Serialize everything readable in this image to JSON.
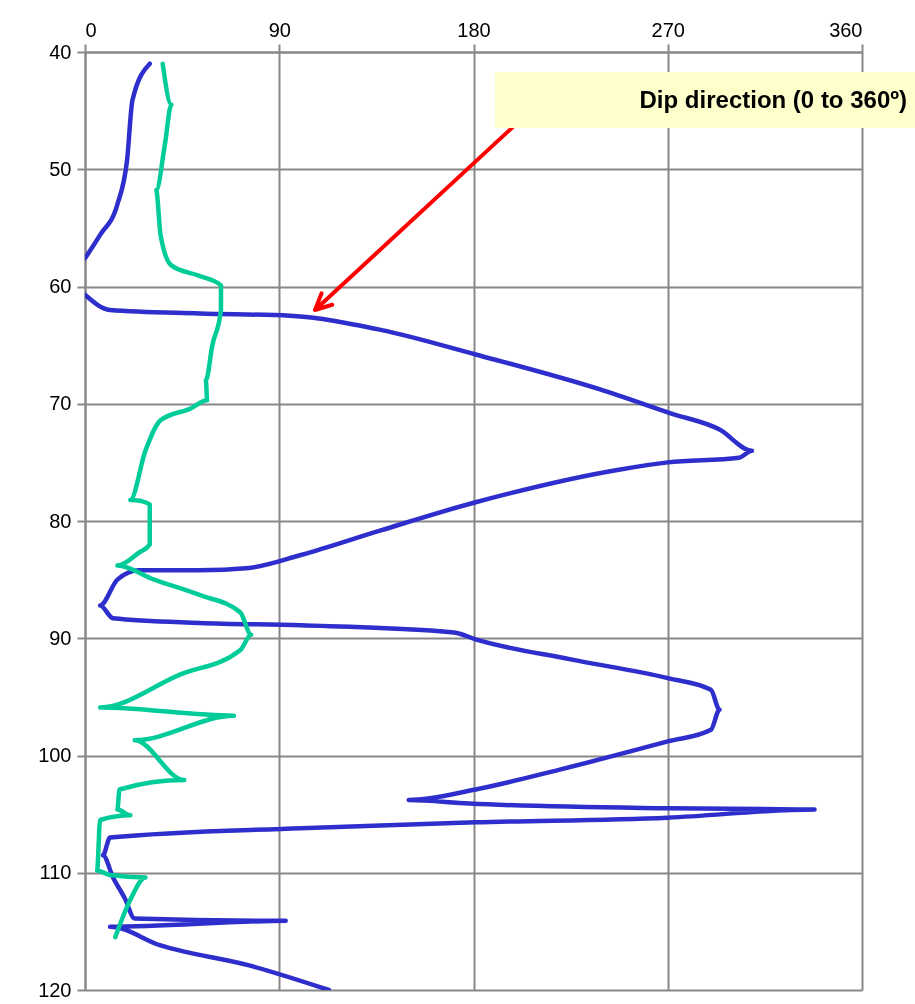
{
  "chart_data": {
    "type": "line",
    "orientation": "horizontal",
    "xlim": [
      0,
      360
    ],
    "xticks": [
      0,
      90,
      180,
      270,
      360
    ],
    "ylim": [
      120,
      40
    ],
    "yticks": [
      40,
      50,
      60,
      70,
      80,
      90,
      100,
      110,
      120
    ],
    "grid": true,
    "line_style": "solid",
    "annotations": [
      "Dip direction (0 to 360º)"
    ],
    "series": [
      {
        "color": "#2e2ecc",
        "x": [
          41,
          44.1,
          49.2,
          53,
          55.6,
          57.6,
          null,
          60.7,
          62.0,
          62.3,
          62.5,
          63.7,
          65.8,
          68.8,
          70.8,
          72.2,
          74,
          74.6,
          75,
          75.6,
          78.4,
          80.8,
          82.9,
          84,
          84.2,
          84.2,
          85,
          87.2,
          88.3,
          88.7,
          88.9,
          89.5,
          90.1,
          91.8,
          93.4,
          94.4,
          96.1,
          97.8,
          98.8,
          101.2,
          102.9,
          103.8,
          104.1,
          104.5,
          104.6,
          105.3,
          105.7,
          106.2,
          107,
          108.5,
          110.4,
          112.2,
          113.9,
          114.1,
          114.6,
          116.2,
          117.9,
          120
        ],
        "values": [
          30,
          22,
          19.5,
          15,
          7,
          0,
          null,
          0,
          11.6,
          53,
          95,
          137,
          181,
          239,
          271,
          294,
          309,
          303,
          270,
          248,
          181,
          137,
          100,
          76,
          53,
          25,
          15,
          7,
          13,
          53,
          100,
          171,
          181,
          225,
          270,
          290,
          294,
          290,
          270,
          220,
          181,
          150,
          178,
          270,
          338,
          270,
          181,
          100,
          11.6,
          8.3,
          13,
          18.5,
          23,
          93,
          11.6,
          35,
          76,
          113
        ]
      },
      {
        "color": "#00cc99",
        "x": [
          41,
          44.5,
          47.9,
          51.8,
          55.6,
          58.2,
          59.1,
          59.9,
          62,
          65,
          68,
          69.7,
          70.4,
          71.4,
          74,
          78.2,
          78.3,
          78.6,
          82,
          82.7,
          83.8,
          85,
          86.3,
          87.8,
          89.7,
          91,
          93.1,
          95.9,
          96.6,
          98.7,
          102.1,
          102.9,
          104.6,
          105.1,
          105.5,
          109.8,
          110.2,
          110.4,
          112.3,
          115.5
        ],
        "values": [
          36,
          40,
          37,
          33,
          35,
          40,
          53,
          63,
          63,
          59,
          56,
          56.6,
          49,
          35,
          28,
          21,
          26,
          30,
          30,
          25,
          15,
          32,
          53,
          72,
          77,
          72,
          44,
          7,
          69,
          23,
          46,
          16,
          15,
          21,
          7,
          5.6,
          11.6,
          28,
          21,
          14
        ]
      }
    ]
  }
}
